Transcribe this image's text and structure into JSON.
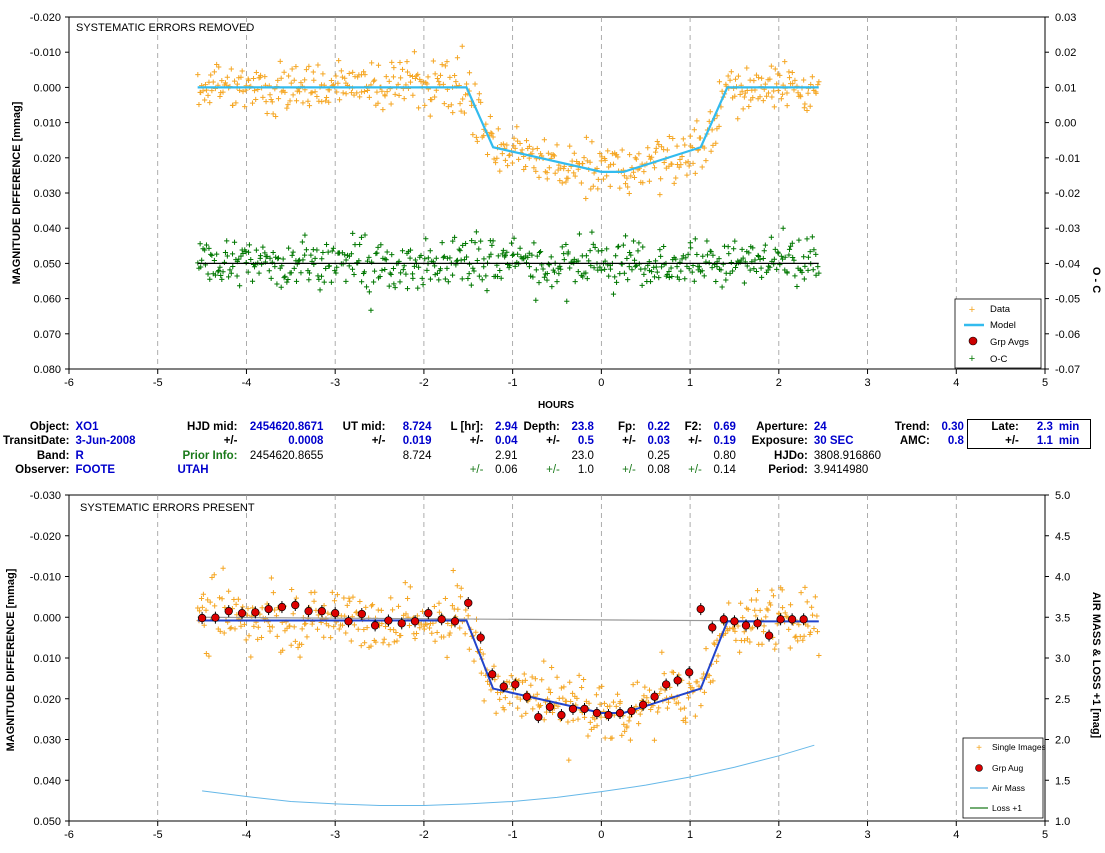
{
  "chart_data": [
    {
      "type": "scatter",
      "title": "SYSTEMATIC ERRORS REMOVED",
      "xlabel": "HOURS",
      "ylabel": "MAGNITUDE DIFFERENCE [mmag]",
      "y2label": "O - C",
      "xlim": [
        -6,
        5
      ],
      "ylim": [
        -0.02,
        0.08
      ],
      "y2lim": [
        -0.07,
        0.03
      ],
      "y_inverted": true,
      "grid": "vertical dashed",
      "legend_position": "bottom-right",
      "x_ticks": [
        "-6",
        "-5",
        "-4",
        "-3",
        "-2",
        "-1",
        "0",
        "1",
        "2",
        "3",
        "4",
        "5"
      ],
      "y_ticks": [
        "-0.020",
        "-0.010",
        "0.000",
        "0.010",
        "0.020",
        "0.030",
        "0.040",
        "0.050",
        "0.060",
        "0.070",
        "0.080"
      ],
      "y2_ticks": [
        "-0.07",
        "-0.06",
        "-0.05",
        "-0.04",
        "-0.03",
        "-0.02",
        "-0.01",
        "0.00",
        "0.01",
        "0.02",
        "0.03"
      ],
      "series": [
        {
          "name": "Data",
          "style": "plus",
          "color": "#f5a623",
          "x_range": [
            -4.55,
            2.45
          ],
          "model": "transit",
          "scatter": 0.0035
        },
        {
          "name": "Model",
          "style": "line",
          "color": "#33bbee",
          "x": [
            -4.55,
            -1.52,
            -1.22,
            0.0,
            0.25,
            1.12,
            1.42,
            2.45
          ],
          "y": [
            0.0,
            0.0,
            0.017,
            0.024,
            0.024,
            0.017,
            0.0,
            0.0
          ]
        },
        {
          "name": "Grp Avgs",
          "style": "circle",
          "color": "#cc0000",
          "points": []
        },
        {
          "name": "O-C",
          "style": "plus",
          "color": "#007700",
          "x_range": [
            -4.55,
            2.45
          ],
          "offset": 0.05,
          "scatter": 0.0035
        }
      ],
      "reference_line": {
        "y": 0.05,
        "color": "#000000"
      }
    },
    {
      "type": "scatter",
      "title": "SYSTEMATIC ERRORS PRESENT",
      "xlabel": "",
      "ylabel": "MAGNITUDE DIFFERENCE [mmag]",
      "y2label": "AIR MASS & LOSS +1 [mag]",
      "xlim": [
        -6,
        5
      ],
      "ylim": [
        -0.03,
        0.05
      ],
      "y2lim": [
        1.0,
        5.0
      ],
      "y_inverted": true,
      "grid": "vertical dashed",
      "legend_position": "bottom-right",
      "x_ticks": [
        "-6",
        "-5",
        "-4",
        "-3",
        "-2",
        "-1",
        "0",
        "1",
        "2",
        "3",
        "4",
        "5"
      ],
      "y_ticks": [
        "-0.030",
        "-0.020",
        "-0.010",
        "0.000",
        "0.010",
        "0.020",
        "0.030",
        "0.040",
        "0.050"
      ],
      "y2_ticks": [
        "1.0",
        "1.5",
        "2.0",
        "2.5",
        "3.0",
        "3.5",
        "4.0",
        "4.5",
        "5.0"
      ],
      "series": [
        {
          "name": "Single Images",
          "style": "plus",
          "color": "#f5a623",
          "x_range": [
            -4.55,
            2.45
          ],
          "model": "transit",
          "scatter": 0.0038
        },
        {
          "name": "Grp Aug",
          "style": "circle",
          "color": "#dd0000",
          "x": [
            -4.5,
            -4.35,
            -4.2,
            -4.05,
            -3.9,
            -3.75,
            -3.6,
            -3.45,
            -3.3,
            -3.15,
            -3.0,
            -2.85,
            -2.7,
            -2.55,
            -2.4,
            -2.25,
            -2.1,
            -1.95,
            -1.8,
            -1.65,
            -1.5,
            -1.36,
            -1.23,
            -1.1,
            -0.97,
            -0.84,
            -0.71,
            -0.58,
            -0.45,
            -0.32,
            -0.19,
            -0.05,
            0.08,
            0.21,
            0.34,
            0.47,
            0.6,
            0.73,
            0.86,
            0.99,
            1.12,
            1.25,
            1.38,
            1.5,
            1.63,
            1.76,
            1.89,
            2.02,
            2.15,
            2.28
          ],
          "y": [
            0.0002,
            0.0001,
            -0.0015,
            -0.001,
            -0.0012,
            -0.002,
            -0.0025,
            -0.003,
            -0.0015,
            -0.0015,
            -0.001,
            0.001,
            -0.0008,
            0.002,
            0.0008,
            0.0015,
            0.001,
            -0.001,
            0.0005,
            0.001,
            -0.0035,
            0.005,
            0.014,
            0.017,
            0.0165,
            0.0195,
            0.0245,
            0.022,
            0.024,
            0.0225,
            0.0225,
            0.0235,
            0.024,
            0.0235,
            0.023,
            0.0215,
            0.0195,
            0.0165,
            0.0155,
            0.0135,
            -0.002,
            0.0025,
            0.0005,
            0.001,
            0.002,
            0.0015,
            0.0045,
            0.0005,
            0.0005,
            0.0005
          ]
        },
        {
          "name": "Air Mass",
          "style": "line",
          "color": "#66b8e8",
          "x": [
            -4.5,
            -4.0,
            -3.5,
            -3.0,
            -2.5,
            -2.0,
            -1.5,
            -1.0,
            -0.5,
            0.0,
            0.5,
            1.0,
            1.5,
            2.0,
            2.4
          ],
          "y": [
            1.37,
            1.3,
            1.24,
            1.21,
            1.19,
            1.19,
            1.21,
            1.24,
            1.29,
            1.36,
            1.44,
            1.54,
            1.66,
            1.8,
            1.93
          ]
        },
        {
          "name": "Loss +1",
          "style": "line",
          "color": "#1e7a1e",
          "x": [],
          "y": []
        }
      ],
      "model_line": {
        "color": "#2244cc",
        "x": [
          -4.55,
          -1.52,
          -1.22,
          0.0,
          0.25,
          1.12,
          1.42,
          2.45
        ],
        "y": [
          0.0008,
          0.0008,
          0.0175,
          0.0235,
          0.0235,
          0.0175,
          0.001,
          0.001
        ]
      },
      "gray_line": {
        "color": "#999999",
        "x": [
          -4.55,
          2.45
        ],
        "y": [
          0.0,
          0.001
        ]
      }
    }
  ],
  "info": {
    "row1": {
      "object_label": "Object:",
      "object_value": "XO1",
      "hjdmid_label": "HJD mid:",
      "hjdmid_value": "2454620.8671",
      "utmid_label": "UT mid:",
      "utmid_value": "8.724",
      "lhr_label": "L [hr]:",
      "lhr_value": "2.94",
      "depth_label": "Depth:",
      "depth_value": "23.8",
      "fp_label": "Fp:",
      "fp_value": "0.22",
      "f2_label": "F2:",
      "f2_value": "0.69",
      "aperture_label": "Aperture:",
      "aperture_value": "24",
      "trend_label": "Trend:",
      "trend_value": "0.30",
      "late_label": "Late:",
      "late_value": "2.3",
      "late_unit": "min"
    },
    "row2": {
      "transitdate_label": "TransitDate:",
      "transitdate_value": "3-Jun-2008",
      "pm1": "+/-",
      "hjd_err": "0.0008",
      "pm2": "+/-",
      "ut_err": "0.019",
      "pm3": "+/-",
      "l_err": "0.04",
      "pm4": "+/-",
      "depth_err": "0.5",
      "pm5": "+/-",
      "fp_err": "0.03",
      "pm6": "+/-",
      "f2_err": "0.19",
      "exposure_label": "Exposure:",
      "exposure_value": "30 SEC",
      "amc_label": "AMC:",
      "amc_value": "0.8",
      "pm7": "+/-",
      "late_err": "1.1",
      "late_err_unit": "min"
    },
    "row3": {
      "band_label": "Band:",
      "band_value": "R",
      "prior_label": "Prior Info:",
      "prior_hjd": "2454620.8655",
      "prior_ut": "8.724",
      "prior_l": "2.91",
      "prior_depth": "23.0",
      "prior_fp": "0.25",
      "prior_f2": "0.80",
      "hjdo_label": "HJDo:",
      "hjdo_value": "3808.916860"
    },
    "row4": {
      "observer_label": "Observer:",
      "observer_value": "FOOTE",
      "location_value": "UTAH",
      "pm1": "+/-",
      "l_err": "0.06",
      "pm2": "+/-",
      "depth_err": "1.0",
      "pm3": "+/-",
      "fp_err": "0.08",
      "pm4": "+/-",
      "f2_err": "0.14",
      "period_label": "Period:",
      "period_value": "3.9414980"
    }
  }
}
